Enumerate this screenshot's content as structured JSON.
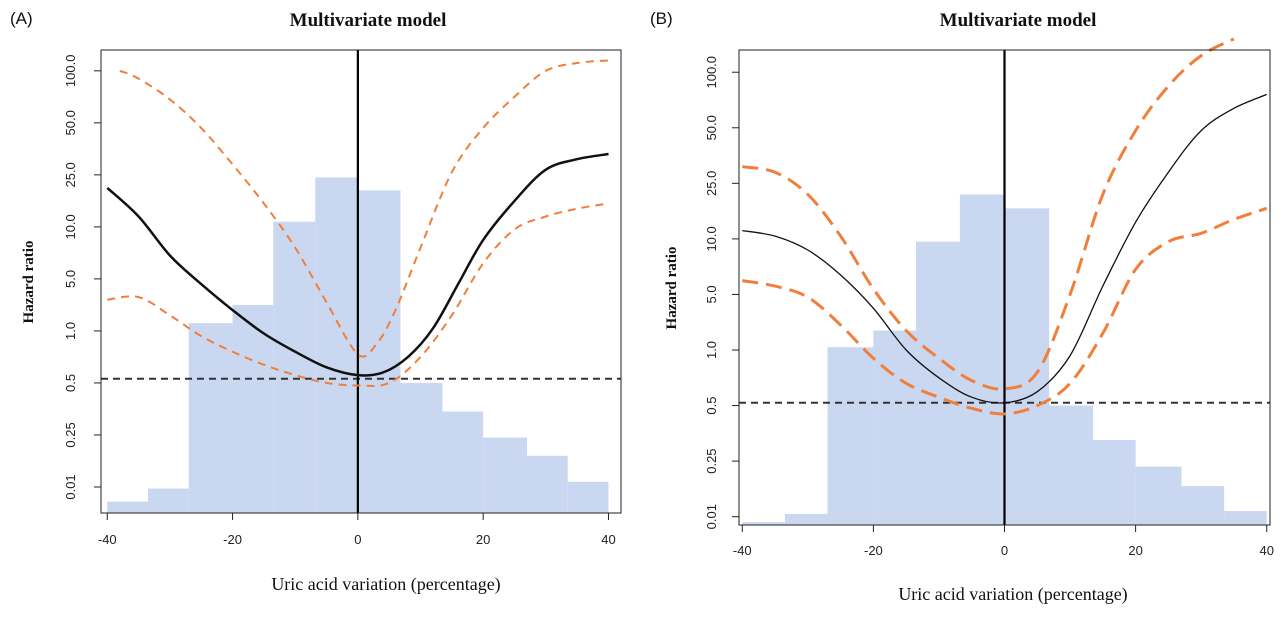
{
  "colors": {
    "histogram": "#c9d7f0",
    "hazard": "#111111",
    "ci": "#f07f3c",
    "reference": "#333333"
  },
  "chart_data": [
    {
      "type": "line",
      "panel": "(A)",
      "title": "Multivariate model",
      "xlabel": "Uric acid variation (percentage)",
      "ylabel": "Hazard ratio",
      "x_ticks": [
        -40,
        -20,
        0,
        20,
        40
      ],
      "xlim": [
        -41,
        42
      ],
      "y_ticks": [
        "0.01",
        "0.25",
        "0.5",
        "1.0",
        "5.0",
        "10.0",
        "25.0",
        "50.0",
        "100.0"
      ],
      "y_scale": "categorical-log",
      "ylim_index": [
        -0.5,
        8.4
      ],
      "grid": false,
      "legend": "none",
      "histogram": {
        "bins": [
          {
            "x0": -40,
            "x1": -33.5,
            "level": -0.28
          },
          {
            "x0": -33.5,
            "x1": -27,
            "level": -0.03
          },
          {
            "x0": -27,
            "x1": -20,
            "level": 3.15
          },
          {
            "x0": -20,
            "x1": -13.5,
            "level": 3.5
          },
          {
            "x0": -13.5,
            "x1": -6.8,
            "level": 5.1
          },
          {
            "x0": -6.8,
            "x1": 0,
            "level": 5.95
          },
          {
            "x0": 0,
            "x1": 6.8,
            "level": 5.7
          },
          {
            "x0": 6.8,
            "x1": 13.5,
            "level": 2.0
          },
          {
            "x0": 13.5,
            "x1": 20,
            "level": 1.45
          },
          {
            "x0": 20,
            "x1": 27,
            "level": 0.95
          },
          {
            "x0": 27,
            "x1": 33.5,
            "level": 0.6
          },
          {
            "x0": 33.5,
            "x1": 40,
            "level": 0.1
          }
        ]
      },
      "reference_line": {
        "level": 2.08
      },
      "vertical_line": {
        "x": 0
      },
      "series": [
        {
          "role": "hazard",
          "dash": "",
          "width": 2.5,
          "points": [
            [
              -40,
              5.75
            ],
            [
              -35,
              5.2
            ],
            [
              -30,
              4.45
            ],
            [
              -25,
              3.9
            ],
            [
              -20,
              3.4
            ],
            [
              -15,
              2.95
            ],
            [
              -10,
              2.6
            ],
            [
              -5,
              2.3
            ],
            [
              0,
              2.15
            ],
            [
              4,
              2.2
            ],
            [
              8,
              2.5
            ],
            [
              12,
              3.05
            ],
            [
              16,
              3.9
            ],
            [
              20,
              4.75
            ],
            [
              25,
              5.5
            ],
            [
              30,
              6.1
            ],
            [
              35,
              6.3
            ],
            [
              40,
              6.4
            ]
          ]
        },
        {
          "role": "ci-upper",
          "dash": "8,6",
          "width": 2,
          "points": [
            [
              -38,
              8.0
            ],
            [
              -35,
              7.85
            ],
            [
              -30,
              7.45
            ],
            [
              -25,
              6.9
            ],
            [
              -20,
              6.2
            ],
            [
              -15,
              5.45
            ],
            [
              -10,
              4.6
            ],
            [
              -5,
              3.55
            ],
            [
              0,
              2.55
            ],
            [
              3,
              2.75
            ],
            [
              6,
              3.4
            ],
            [
              10,
              4.6
            ],
            [
              15,
              6.05
            ],
            [
              20,
              6.9
            ],
            [
              25,
              7.5
            ],
            [
              30,
              8.0
            ],
            [
              35,
              8.15
            ],
            [
              40,
              8.2
            ]
          ]
        },
        {
          "role": "ci-lower",
          "dash": "8,6",
          "width": 2,
          "points": [
            [
              -40,
              3.6
            ],
            [
              -35,
              3.65
            ],
            [
              -30,
              3.3
            ],
            [
              -25,
              2.9
            ],
            [
              -20,
              2.6
            ],
            [
              -15,
              2.35
            ],
            [
              -10,
              2.15
            ],
            [
              -5,
              2.0
            ],
            [
              0,
              1.95
            ],
            [
              5,
              2.0
            ],
            [
              10,
              2.5
            ],
            [
              15,
              3.3
            ],
            [
              20,
              4.3
            ],
            [
              25,
              4.95
            ],
            [
              30,
              5.2
            ],
            [
              35,
              5.35
            ],
            [
              40,
              5.45
            ]
          ]
        }
      ]
    },
    {
      "type": "line",
      "panel": "(B)",
      "title": "Multivariate model",
      "xlabel": "Uric acid variation (percentage)",
      "ylabel": "Hazard ratio",
      "x_ticks": [
        -40,
        -20,
        0,
        20,
        40
      ],
      "xlim": [
        -40.5,
        40.5
      ],
      "y_ticks": [
        "0.01",
        "0.25",
        "0.5",
        "1.0",
        "5.0",
        "10.0",
        "25.0",
        "50.0",
        "100.0"
      ],
      "y_scale": "categorical-log",
      "ylim_index": [
        -0.15,
        8.4
      ],
      "grid": false,
      "legend": "none",
      "histogram": {
        "bins": [
          {
            "x0": -40,
            "x1": -33.5,
            "level": -0.1
          },
          {
            "x0": -33.5,
            "x1": -27,
            "level": 0.05
          },
          {
            "x0": -27,
            "x1": -20,
            "level": 3.05
          },
          {
            "x0": -20,
            "x1": -13.5,
            "level": 3.35
          },
          {
            "x0": -13.5,
            "x1": -6.8,
            "level": 4.95
          },
          {
            "x0": -6.8,
            "x1": 0,
            "level": 5.8
          },
          {
            "x0": 0,
            "x1": 6.8,
            "level": 5.55
          },
          {
            "x0": 6.8,
            "x1": 13.5,
            "level": 2.0
          },
          {
            "x0": 13.5,
            "x1": 20,
            "level": 1.38
          },
          {
            "x0": 20,
            "x1": 27,
            "level": 0.9
          },
          {
            "x0": 27,
            "x1": 33.5,
            "level": 0.55
          },
          {
            "x0": 33.5,
            "x1": 40,
            "level": 0.1
          }
        ]
      },
      "reference_line": {
        "level": 2.05
      },
      "vertical_line": {
        "x": 0
      },
      "series": [
        {
          "role": "hazard",
          "dash": "",
          "width": 1.3,
          "points": [
            [
              -40,
              5.15
            ],
            [
              -35,
              5.05
            ],
            [
              -30,
              4.8
            ],
            [
              -25,
              4.35
            ],
            [
              -20,
              3.75
            ],
            [
              -15,
              3.0
            ],
            [
              -10,
              2.5
            ],
            [
              -5,
              2.15
            ],
            [
              0,
              2.05
            ],
            [
              5,
              2.25
            ],
            [
              10,
              2.9
            ],
            [
              15,
              4.15
            ],
            [
              20,
              5.3
            ],
            [
              25,
              6.2
            ],
            [
              30,
              6.95
            ],
            [
              35,
              7.35
            ],
            [
              40,
              7.6
            ]
          ]
        },
        {
          "role": "ci-upper",
          "dash": "16,8",
          "width": 3,
          "points": [
            [
              -40,
              6.3
            ],
            [
              -35,
              6.2
            ],
            [
              -30,
              5.8
            ],
            [
              -25,
              5.05
            ],
            [
              -20,
              4.1
            ],
            [
              -15,
              3.35
            ],
            [
              -10,
              2.85
            ],
            [
              -5,
              2.45
            ],
            [
              0,
              2.3
            ],
            [
              5,
              2.6
            ],
            [
              10,
              4.0
            ],
            [
              15,
              5.8
            ],
            [
              20,
              6.95
            ],
            [
              25,
              7.75
            ],
            [
              30,
              8.3
            ],
            [
              35,
              8.6
            ]
          ]
        },
        {
          "role": "ci-lower",
          "dash": "16,8",
          "width": 3,
          "points": [
            [
              -40,
              4.25
            ],
            [
              -35,
              4.15
            ],
            [
              -30,
              3.95
            ],
            [
              -25,
              3.45
            ],
            [
              -20,
              2.85
            ],
            [
              -15,
              2.4
            ],
            [
              -10,
              2.15
            ],
            [
              -5,
              1.95
            ],
            [
              0,
              1.85
            ],
            [
              5,
              2.0
            ],
            [
              10,
              2.4
            ],
            [
              15,
              3.3
            ],
            [
              20,
              4.45
            ],
            [
              25,
              4.95
            ],
            [
              30,
              5.1
            ],
            [
              35,
              5.35
            ],
            [
              40,
              5.55
            ]
          ]
        }
      ]
    }
  ]
}
